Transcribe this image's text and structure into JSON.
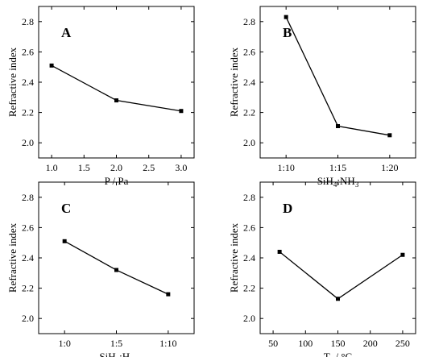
{
  "chart_data": [
    {
      "panel_label": "A",
      "type": "line",
      "x": [
        1.0,
        2.0,
        3.0
      ],
      "values": [
        2.51,
        2.28,
        2.21
      ],
      "ylabel": "Refractive index",
      "xlabel": {
        "base": "P / Pa"
      },
      "xlim": [
        0.8,
        3.2
      ],
      "ylim": [
        1.9,
        2.9
      ],
      "xticks": [
        1.0,
        1.5,
        2.0,
        2.5,
        3.0
      ],
      "xtick_labels": [
        "1.0",
        "1.5",
        "2.0",
        "2.5",
        "3.0"
      ],
      "yticks": [
        2.0,
        2.2,
        2.4,
        2.6,
        2.8
      ],
      "ytick_labels": [
        "2.0",
        "2.2",
        "2.4",
        "2.6",
        "2.8"
      ],
      "grid": false
    },
    {
      "panel_label": "B",
      "type": "line",
      "categories": [
        "1:10",
        "1:15",
        "1:20"
      ],
      "values": [
        2.83,
        2.11,
        2.05
      ],
      "ylabel": "Refractive index",
      "xlabel": {
        "parts": [
          [
            "SiH",
            ""
          ],
          [
            "4",
            "sub"
          ],
          [
            ":NH",
            ""
          ],
          [
            "3",
            "sub"
          ]
        ]
      },
      "xlim": [
        -0.5,
        2.5
      ],
      "ylim": [
        1.9,
        2.9
      ],
      "yticks": [
        2.0,
        2.2,
        2.4,
        2.6,
        2.8
      ],
      "ytick_labels": [
        "2.0",
        "2.2",
        "2.4",
        "2.6",
        "2.8"
      ],
      "grid": false
    },
    {
      "panel_label": "C",
      "type": "line",
      "categories": [
        "1:0",
        "1:5",
        "1:10"
      ],
      "values": [
        2.51,
        2.32,
        2.16
      ],
      "ylabel": "Refractive index",
      "xlabel": {
        "parts": [
          [
            "SiH",
            ""
          ],
          [
            "4",
            "sub"
          ],
          [
            ":H",
            ""
          ],
          [
            "2",
            "sub"
          ]
        ]
      },
      "xlim": [
        -0.5,
        2.5
      ],
      "ylim": [
        1.9,
        2.9
      ],
      "yticks": [
        2.0,
        2.2,
        2.4,
        2.6,
        2.8
      ],
      "ytick_labels": [
        "2.0",
        "2.2",
        "2.4",
        "2.6",
        "2.8"
      ],
      "grid": false
    },
    {
      "panel_label": "D",
      "type": "line",
      "x": [
        60,
        150,
        250
      ],
      "values": [
        2.44,
        2.13,
        2.42
      ],
      "ylabel": "Refractive index",
      "xlabel": {
        "parts": [
          [
            "T",
            ""
          ],
          [
            "s",
            "sub"
          ],
          [
            " / °C",
            ""
          ]
        ]
      },
      "xlim": [
        30,
        270
      ],
      "ylim": [
        1.9,
        2.9
      ],
      "xticks": [
        50,
        100,
        150,
        200,
        250
      ],
      "xtick_labels": [
        "50",
        "100",
        "150",
        "200",
        "250"
      ],
      "yticks": [
        2.0,
        2.2,
        2.4,
        2.6,
        2.8
      ],
      "ytick_labels": [
        "2.0",
        "2.2",
        "2.4",
        "2.6",
        "2.8"
      ],
      "grid": false
    }
  ]
}
